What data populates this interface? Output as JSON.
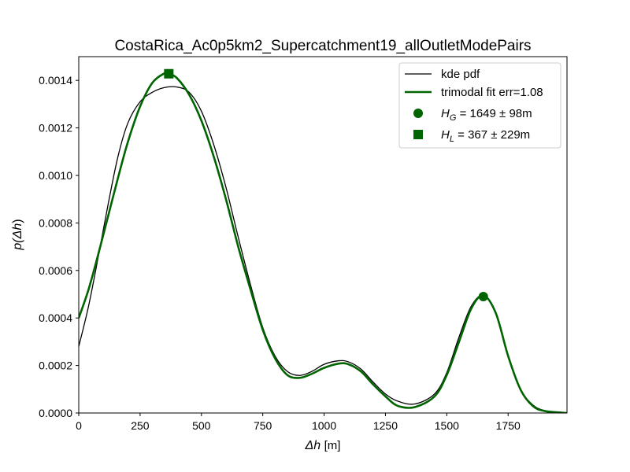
{
  "chart_data": {
    "type": "line",
    "title": "CostaRica_Ac0p5km2_Supercatchment19_allOutletModePairs",
    "xlabel_sym": "Δh",
    "xlabel_unit": "[m]",
    "ylabel_fn": "p(",
    "ylabel_sym": "Δh",
    "ylabel_close": ")",
    "xlim": [
      0,
      1990
    ],
    "ylim": [
      0,
      0.0015
    ],
    "x_ticks": [
      0,
      250,
      500,
      750,
      1000,
      1250,
      1500,
      1750
    ],
    "x_tick_labels": [
      "0",
      "250",
      "500",
      "750",
      "1000",
      "1250",
      "1500",
      "1750"
    ],
    "y_ticks": [
      0,
      0.0002,
      0.0004,
      0.0006,
      0.0008,
      0.001,
      0.0012,
      0.0014
    ],
    "y_tick_labels": [
      "0.0000",
      "0.0002",
      "0.0004",
      "0.0006",
      "0.0008",
      "0.0010",
      "0.0012",
      "0.0014"
    ],
    "legend_position": "top-right",
    "grid": false,
    "series": [
      {
        "name": "kde pdf",
        "color": "#000000",
        "points": [
          [
            0,
            0.00028
          ],
          [
            40,
            0.00045
          ],
          [
            80,
            0.00066
          ],
          [
            120,
            0.00088
          ],
          [
            160,
            0.00108
          ],
          [
            200,
            0.00122
          ],
          [
            250,
            0.00131
          ],
          [
            300,
            0.00135
          ],
          [
            350,
            0.00137
          ],
          [
            400,
            0.001372
          ],
          [
            450,
            0.00135
          ],
          [
            500,
            0.00127
          ],
          [
            550,
            0.00113
          ],
          [
            600,
            0.00095
          ],
          [
            650,
            0.00074
          ],
          [
            700,
            0.00054
          ],
          [
            750,
            0.00036
          ],
          [
            800,
            0.00024
          ],
          [
            850,
            0.000175
          ],
          [
            900,
            0.000158
          ],
          [
            950,
            0.000175
          ],
          [
            1000,
            0.000205
          ],
          [
            1060,
            0.00022
          ],
          [
            1100,
            0.000215
          ],
          [
            1150,
            0.000185
          ],
          [
            1200,
            0.00013
          ],
          [
            1250,
            8e-05
          ],
          [
            1300,
            5e-05
          ],
          [
            1370,
            3.8e-05
          ],
          [
            1450,
            8e-05
          ],
          [
            1500,
            0.00017
          ],
          [
            1550,
            0.00032
          ],
          [
            1600,
            0.00045
          ],
          [
            1650,
            0.000495
          ],
          [
            1700,
            0.00042
          ],
          [
            1750,
            0.00024
          ],
          [
            1800,
            0.0001
          ],
          [
            1850,
            3.5e-05
          ],
          [
            1900,
            1e-05
          ],
          [
            1990,
            0.0
          ]
        ]
      },
      {
        "name": "trimodal fit err=1.08",
        "color": "#006400",
        "points": [
          [
            0,
            0.0004
          ],
          [
            40,
            0.00052
          ],
          [
            80,
            0.00067
          ],
          [
            120,
            0.00083
          ],
          [
            160,
            0.00099
          ],
          [
            200,
            0.00114
          ],
          [
            250,
            0.00129
          ],
          [
            300,
            0.00139
          ],
          [
            350,
            0.00143
          ],
          [
            367,
            0.001428
          ],
          [
            400,
            0.00141
          ],
          [
            450,
            0.00134
          ],
          [
            500,
            0.00123
          ],
          [
            550,
            0.00108
          ],
          [
            600,
            0.0009
          ],
          [
            650,
            0.0007
          ],
          [
            700,
            0.00052
          ],
          [
            750,
            0.00035
          ],
          [
            800,
            0.00023
          ],
          [
            850,
            0.00016
          ],
          [
            900,
            0.000148
          ],
          [
            950,
            0.000165
          ],
          [
            1000,
            0.00019
          ],
          [
            1060,
            0.000208
          ],
          [
            1100,
            0.000205
          ],
          [
            1150,
            0.000175
          ],
          [
            1200,
            0.00012
          ],
          [
            1250,
            7e-05
          ],
          [
            1300,
            3e-05
          ],
          [
            1370,
            2.5e-05
          ],
          [
            1450,
            7e-05
          ],
          [
            1500,
            0.00016
          ],
          [
            1550,
            0.0003
          ],
          [
            1600,
            0.00044
          ],
          [
            1649,
            0.000495
          ],
          [
            1700,
            0.00042
          ],
          [
            1750,
            0.00024
          ],
          [
            1800,
            0.0001
          ],
          [
            1850,
            3e-05
          ],
          [
            1900,
            8e-06
          ],
          [
            1990,
            0.0
          ]
        ]
      }
    ],
    "markers": [
      {
        "label_var": "H",
        "label_sub": "G",
        "label_rest": " = 1649 ± 98m",
        "shape": "circle",
        "x": 1649,
        "y": 0.00049,
        "color": "#006400"
      },
      {
        "label_var": "H",
        "label_sub": "L",
        "label_rest": " = 367 ± 229m",
        "shape": "square",
        "x": 367,
        "y": 0.001428,
        "color": "#006400"
      }
    ]
  }
}
